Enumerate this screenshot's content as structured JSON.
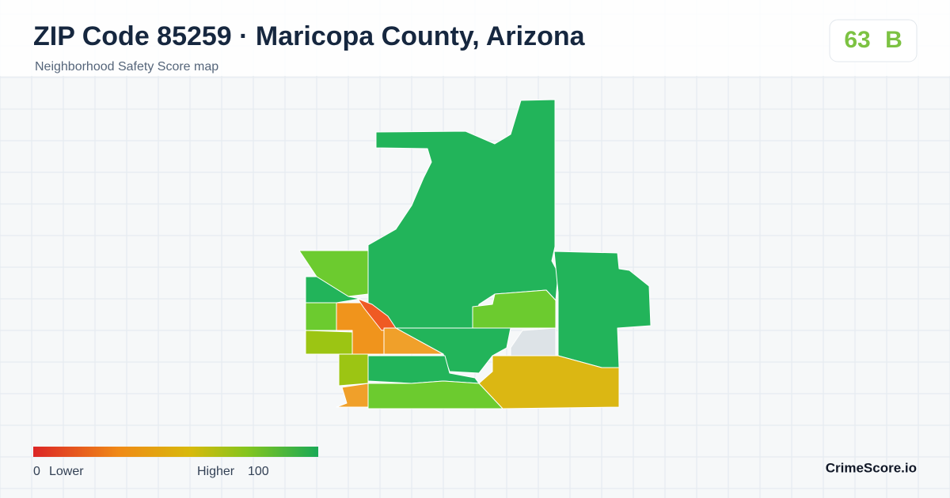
{
  "header": {
    "title": "ZIP Code 85259 · Maricopa County, Arizona",
    "subtitle": "Neighborhood Safety Score map"
  },
  "score": {
    "value": 63,
    "grade": "B"
  },
  "legend": {
    "min": 0,
    "min_label": "Lower",
    "max_label": "Higher",
    "max": 100
  },
  "brand": "CrimeScore.io"
}
